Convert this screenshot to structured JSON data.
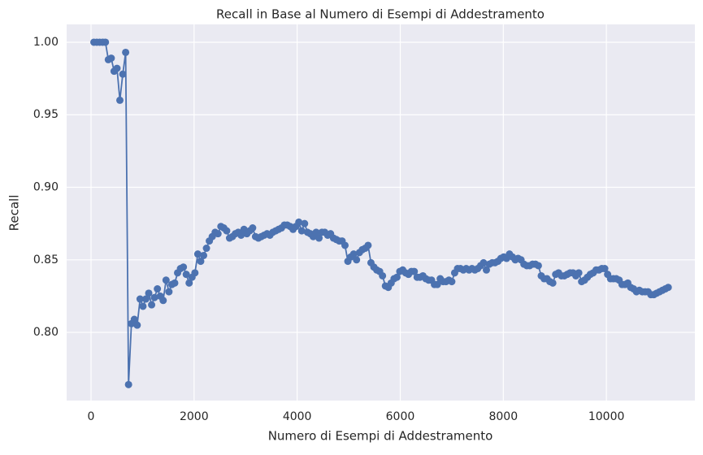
{
  "chart_data": {
    "type": "line",
    "title": "Recall in Base al Numero di Esempi di Addestramento",
    "x_label": "Numero di Esempi di Addestramento",
    "y_label": "Recall",
    "grid": true,
    "xlim": [
      -473,
      11717
    ],
    "ylim": [
      0.753,
      1.0123
    ],
    "xticks": [
      0,
      2000,
      4000,
      6000,
      8000,
      10000
    ],
    "yticks": [
      {
        "value": 0.8,
        "label": "0.80"
      },
      0.85,
      {
        "value": 0.9,
        "label": "0.90"
      },
      0.95,
      {
        "value": 1.0,
        "label": "1.00"
      }
    ],
    "series": [
      {
        "name": "Recall",
        "color": "#4c72b0",
        "x": [
          56,
          112,
          168,
          224,
          280,
          336,
          392,
          448,
          504,
          560,
          616,
          672,
          728,
          784,
          840,
          896,
          952,
          1008,
          1064,
          1120,
          1176,
          1232,
          1288,
          1344,
          1400,
          1456,
          1512,
          1568,
          1624,
          1680,
          1736,
          1792,
          1848,
          1904,
          1960,
          2016,
          2072,
          2128,
          2184,
          2240,
          2296,
          2352,
          2408,
          2464,
          2520,
          2576,
          2632,
          2688,
          2744,
          2800,
          2856,
          2912,
          2968,
          3024,
          3080,
          3136,
          3192,
          3248,
          3304,
          3360,
          3416,
          3472,
          3528,
          3584,
          3640,
          3696,
          3752,
          3808,
          3864,
          3920,
          3976,
          4032,
          4088,
          4144,
          4200,
          4256,
          4312,
          4368,
          4424,
          4480,
          4536,
          4592,
          4648,
          4704,
          4760,
          4816,
          4872,
          4928,
          4984,
          5040,
          5096,
          5152,
          5208,
          5264,
          5320,
          5376,
          5432,
          5488,
          5544,
          5600,
          5656,
          5712,
          5768,
          5824,
          5880,
          5936,
          5992,
          6048,
          6104,
          6160,
          6216,
          6272,
          6328,
          6384,
          6440,
          6496,
          6552,
          6608,
          6664,
          6720,
          6776,
          6832,
          6888,
          6944,
          7000,
          7056,
          7112,
          7168,
          7224,
          7280,
          7336,
          7392,
          7448,
          7504,
          7560,
          7616,
          7672,
          7728,
          7784,
          7840,
          7896,
          7952,
          8008,
          8064,
          8120,
          8176,
          8232,
          8288,
          8344,
          8400,
          8456,
          8512,
          8568,
          8624,
          8680,
          8736,
          8792,
          8848,
          8904,
          8960,
          9016,
          9072,
          9128,
          9184,
          9240,
          9296,
          9352,
          9408,
          9464,
          9520,
          9576,
          9632,
          9688,
          9744,
          9800,
          9856,
          9912,
          9968,
          10024,
          10080,
          10136,
          10192,
          10248,
          10304,
          10360,
          10416,
          10472,
          10528,
          10584,
          10640,
          10696,
          10752,
          10808,
          10864,
          10920,
          10976,
          11032,
          11088,
          11144,
          11200
        ],
        "values": [
          1.0,
          1.0,
          1.0,
          1.0,
          1.0,
          0.988,
          0.989,
          0.98,
          0.982,
          0.96,
          0.978,
          0.993,
          0.764,
          0.806,
          0.809,
          0.805,
          0.823,
          0.818,
          0.823,
          0.827,
          0.819,
          0.824,
          0.83,
          0.825,
          0.822,
          0.836,
          0.828,
          0.833,
          0.834,
          0.841,
          0.844,
          0.845,
          0.84,
          0.834,
          0.838,
          0.841,
          0.854,
          0.849,
          0.853,
          0.858,
          0.863,
          0.866,
          0.869,
          0.868,
          0.873,
          0.872,
          0.87,
          0.865,
          0.866,
          0.868,
          0.869,
          0.867,
          0.871,
          0.868,
          0.87,
          0.872,
          0.866,
          0.865,
          0.866,
          0.867,
          0.868,
          0.867,
          0.869,
          0.87,
          0.871,
          0.872,
          0.874,
          0.874,
          0.873,
          0.871,
          0.873,
          0.876,
          0.87,
          0.875,
          0.869,
          0.868,
          0.866,
          0.869,
          0.865,
          0.869,
          0.869,
          0.867,
          0.868,
          0.865,
          0.864,
          0.863,
          0.863,
          0.86,
          0.849,
          0.852,
          0.854,
          0.85,
          0.855,
          0.857,
          0.858,
          0.86,
          0.848,
          0.845,
          0.843,
          0.842,
          0.839,
          0.832,
          0.831,
          0.834,
          0.837,
          0.838,
          0.842,
          0.843,
          0.841,
          0.84,
          0.842,
          0.842,
          0.838,
          0.838,
          0.839,
          0.837,
          0.836,
          0.836,
          0.833,
          0.833,
          0.837,
          0.835,
          0.835,
          0.836,
          0.835,
          0.841,
          0.844,
          0.844,
          0.843,
          0.844,
          0.843,
          0.844,
          0.843,
          0.844,
          0.846,
          0.848,
          0.843,
          0.847,
          0.848,
          0.848,
          0.849,
          0.851,
          0.852,
          0.851,
          0.854,
          0.852,
          0.85,
          0.851,
          0.85,
          0.847,
          0.846,
          0.846,
          0.847,
          0.847,
          0.846,
          0.839,
          0.837,
          0.837,
          0.835,
          0.834,
          0.84,
          0.841,
          0.839,
          0.839,
          0.84,
          0.841,
          0.841,
          0.839,
          0.841,
          0.835,
          0.836,
          0.838,
          0.84,
          0.841,
          0.843,
          0.843,
          0.844,
          0.844,
          0.84,
          0.837,
          0.837,
          0.837,
          0.836,
          0.833,
          0.833,
          0.834,
          0.831,
          0.83,
          0.828,
          0.829,
          0.828,
          0.828,
          0.828,
          0.826,
          0.826,
          0.827,
          0.828,
          0.829,
          0.83,
          0.831
        ]
      }
    ]
  }
}
